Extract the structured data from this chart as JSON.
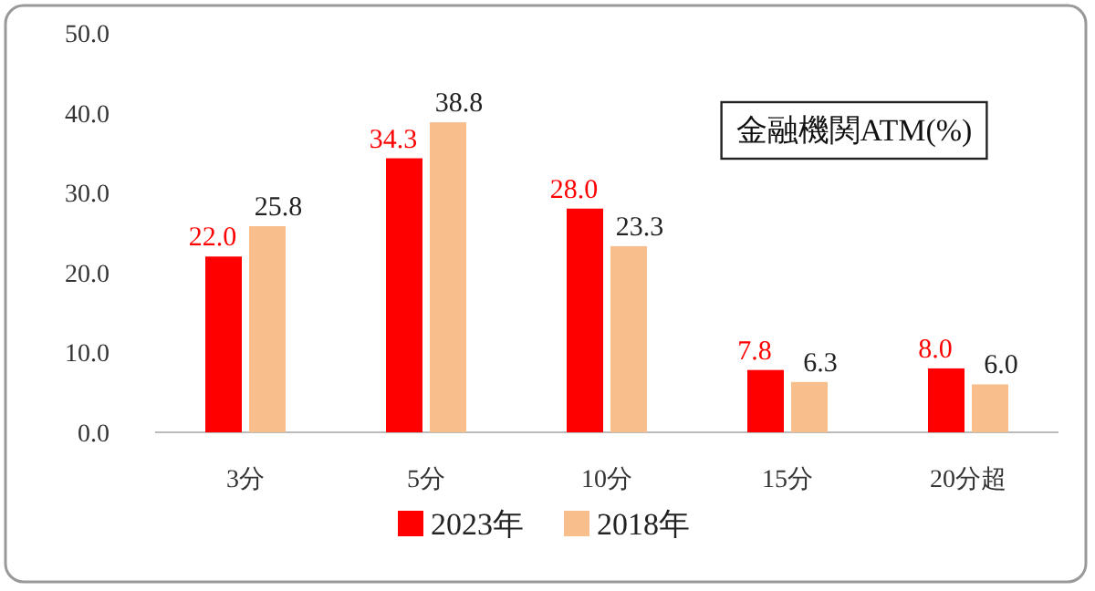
{
  "chart_data": {
    "type": "bar",
    "title": "金融機関ATM(%)",
    "categories": [
      "3分",
      "5分",
      "10分",
      "15分",
      "20分超"
    ],
    "series": [
      {
        "name": "2023年",
        "color": "#ff0000",
        "values": [
          22.0,
          34.3,
          28.0,
          7.8,
          8.0
        ],
        "value_labels": [
          "22.0",
          "34.3",
          "28.0",
          "7.8",
          "8.0"
        ]
      },
      {
        "name": "2018年",
        "color": "#f8be8c",
        "values": [
          25.8,
          38.8,
          23.3,
          6.3,
          6.0
        ],
        "value_labels": [
          "25.8",
          "38.8",
          "23.3",
          "6.3",
          "6.0"
        ]
      }
    ],
    "ylim": [
      0,
      50
    ],
    "yticks": [
      {
        "value": 0,
        "label": "0.0"
      },
      {
        "value": 10,
        "label": "10.0"
      },
      {
        "value": 20,
        "label": "20.0"
      },
      {
        "value": 30,
        "label": "30.0"
      },
      {
        "value": 40,
        "label": "40.0"
      },
      {
        "value": 50,
        "label": "50.0"
      }
    ],
    "grid": false,
    "legend": "bottom"
  }
}
